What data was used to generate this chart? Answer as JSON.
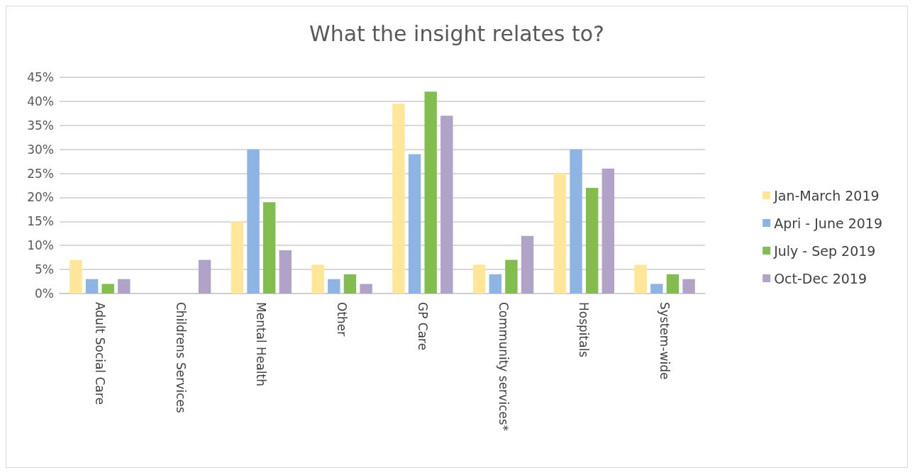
{
  "chart_data": {
    "type": "bar",
    "title": "What the insight relates to?",
    "categories": [
      "Adult Social Care",
      "Childrens Services",
      "Mental Health",
      "Other",
      "GP Care",
      "Community services*",
      "Hospitals",
      "System-wide"
    ],
    "series": [
      {
        "name": "Jan-March 2019",
        "color": "#ffe699",
        "values": [
          7,
          0,
          15,
          6,
          39.5,
          6,
          25,
          6
        ]
      },
      {
        "name": "Apri - June 2019",
        "color": "#8eb4e3",
        "values": [
          3,
          0,
          30,
          3,
          29,
          4,
          30,
          2
        ]
      },
      {
        "name": "July - Sep 2019",
        "color": "#84bd4f",
        "values": [
          2,
          0,
          19,
          4,
          42,
          7,
          22,
          4
        ]
      },
      {
        "name": "Oct-Dec 2019",
        "color": "#b1a2c8",
        "values": [
          3,
          7,
          9,
          2,
          37,
          12,
          26,
          3
        ]
      }
    ],
    "ylim": [
      0,
      45
    ],
    "yticks": [
      {
        "value": 0,
        "label": "0%"
      },
      {
        "value": 5,
        "label": "5%"
      },
      {
        "value": 10,
        "label": "10%"
      },
      {
        "value": 15,
        "label": "15%"
      },
      {
        "value": 20,
        "label": "20%"
      },
      {
        "value": 25,
        "label": "25%"
      },
      {
        "value": 30,
        "label": "30%"
      },
      {
        "value": 35,
        "label": "35%"
      },
      {
        "value": 40,
        "label": "40%"
      },
      {
        "value": 45,
        "label": "45%"
      }
    ],
    "grid": "y",
    "legend": "right"
  }
}
